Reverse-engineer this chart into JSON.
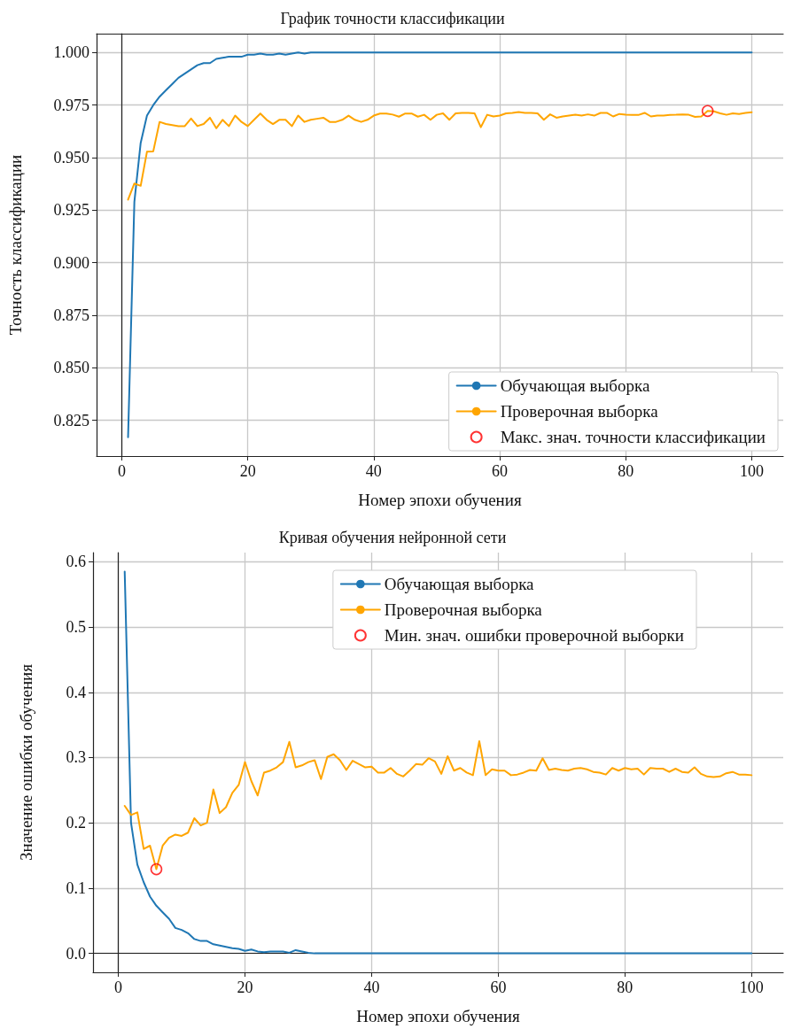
{
  "chart_data": [
    {
      "type": "line",
      "title": "График точности классификации",
      "xlabel": "Номер эпохи обучения",
      "ylabel": "Точность классификации",
      "x": [
        1,
        2,
        3,
        4,
        5,
        6,
        7,
        8,
        9,
        10,
        11,
        12,
        13,
        14,
        15,
        16,
        17,
        18,
        19,
        20,
        21,
        22,
        23,
        24,
        25,
        26,
        27,
        28,
        29,
        30,
        31,
        32,
        33,
        34,
        35,
        36,
        37,
        38,
        39,
        40,
        41,
        42,
        43,
        44,
        45,
        46,
        47,
        48,
        49,
        50,
        51,
        52,
        53,
        54,
        55,
        56,
        57,
        58,
        59,
        60,
        61,
        62,
        63,
        64,
        65,
        66,
        67,
        68,
        69,
        70,
        71,
        72,
        73,
        74,
        75,
        76,
        77,
        78,
        79,
        80,
        81,
        82,
        83,
        84,
        85,
        86,
        87,
        88,
        89,
        90,
        91,
        92,
        93,
        94,
        95,
        96,
        97,
        98,
        99,
        100
      ],
      "xlim": [
        -4,
        105
      ],
      "xticks": [
        0,
        20,
        40,
        60,
        80,
        100
      ],
      "ylim": [
        0.808,
        1.009
      ],
      "yticks": [
        {
          "value": 0.825,
          "label": "0.825"
        },
        {
          "value": 0.85,
          "label": "0.850"
        },
        {
          "value": 0.875,
          "label": "0.875"
        },
        {
          "value": 0.9,
          "label": "0.900"
        },
        {
          "value": 0.925,
          "label": "0.925"
        },
        {
          "value": 0.95,
          "label": "0.950"
        },
        {
          "value": 0.975,
          "label": "0.975"
        },
        {
          "value": 1,
          "label": "1.000"
        }
      ],
      "grid": true,
      "legend": "bottom right",
      "series": [
        {
          "name": "Обучающая выборка",
          "color": "#1f77b4",
          "values": [
            0.817,
            0.929,
            0.957,
            0.97,
            0.975,
            0.979,
            0.982,
            0.985,
            0.988,
            0.99,
            0.992,
            0.994,
            0.995,
            0.995,
            0.997,
            0.9975,
            0.998,
            0.998,
            0.998,
            0.999,
            0.999,
            0.9995,
            0.999,
            0.999,
            0.9995,
            0.999,
            0.9995,
            1,
            0.9995,
            1,
            1,
            1,
            1,
            1,
            1,
            1,
            1,
            1,
            1,
            1,
            1,
            1,
            1,
            1,
            1,
            1,
            1,
            1,
            1,
            1,
            1,
            1,
            1,
            1,
            1,
            1,
            1,
            1,
            1,
            1,
            1,
            1,
            1,
            1,
            1,
            1,
            1,
            1,
            1,
            1,
            1,
            1,
            1,
            1,
            1,
            1,
            1,
            1,
            1,
            1,
            1,
            1,
            1,
            1,
            1,
            1,
            1,
            1,
            1,
            1,
            1,
            1,
            1,
            1,
            1,
            1,
            1,
            1,
            1,
            1
          ]
        },
        {
          "name": "Проверочная выборка",
          "color": "#ffa500",
          "values": [
            0.93,
            0.9377,
            0.9366,
            0.9528,
            0.953,
            0.967,
            0.966,
            0.9655,
            0.965,
            0.965,
            0.9686,
            0.965,
            0.966,
            0.969,
            0.964,
            0.968,
            0.965,
            0.97,
            0.967,
            0.965,
            0.968,
            0.971,
            0.968,
            0.966,
            0.968,
            0.968,
            0.965,
            0.97,
            0.967,
            0.968,
            0.9685,
            0.969,
            0.967,
            0.967,
            0.968,
            0.97,
            0.968,
            0.967,
            0.968,
            0.97,
            0.971,
            0.971,
            0.9705,
            0.9695,
            0.971,
            0.971,
            0.9695,
            0.9704,
            0.968,
            0.9704,
            0.9711,
            0.968,
            0.9711,
            0.9713,
            0.9713,
            0.9711,
            0.9645,
            0.9704,
            0.9696,
            0.97,
            0.9711,
            0.9713,
            0.9717,
            0.9713,
            0.9713,
            0.9711,
            0.968,
            0.9706,
            0.969,
            0.9696,
            0.97,
            0.9704,
            0.97,
            0.9706,
            0.97,
            0.9713,
            0.9713,
            0.9696,
            0.9708,
            0.9704,
            0.9703,
            0.9703,
            0.9713,
            0.9696,
            0.97,
            0.97,
            0.9703,
            0.9704,
            0.9706,
            0.9704,
            0.9694,
            0.9696,
            0.9722,
            0.972,
            0.9711,
            0.9704,
            0.9711,
            0.9708,
            0.9713,
            0.9716
          ]
        },
        {
          "name": "Макс. знач. точности классификации",
          "type": "scatter",
          "marker": "circle",
          "color": "#ff0000",
          "x": [
            93
          ],
          "values": [
            0.9722
          ]
        }
      ]
    },
    {
      "type": "line",
      "title": "Кривая обучения нейронной сети",
      "xlabel": "Номер эпохи обучения",
      "ylabel": "Значение ошибки обучения",
      "x": [
        1,
        2,
        3,
        4,
        5,
        6,
        7,
        8,
        9,
        10,
        11,
        12,
        13,
        14,
        15,
        16,
        17,
        18,
        19,
        20,
        21,
        22,
        23,
        24,
        25,
        26,
        27,
        28,
        29,
        30,
        31,
        32,
        33,
        34,
        35,
        36,
        37,
        38,
        39,
        40,
        41,
        42,
        43,
        44,
        45,
        46,
        47,
        48,
        49,
        50,
        51,
        52,
        53,
        54,
        55,
        56,
        57,
        58,
        59,
        60,
        61,
        62,
        63,
        64,
        65,
        66,
        67,
        68,
        69,
        70,
        71,
        72,
        73,
        74,
        75,
        76,
        77,
        78,
        79,
        80,
        81,
        82,
        83,
        84,
        85,
        86,
        87,
        88,
        89,
        90,
        91,
        92,
        93,
        94,
        95,
        96,
        97,
        98,
        99,
        100
      ],
      "xlim": [
        -4,
        105
      ],
      "xticks": [
        0,
        20,
        40,
        60,
        80,
        100
      ],
      "ylim": [
        -0.029,
        0.614
      ],
      "yticks": [
        {
          "value": 0,
          "label": "0.0"
        },
        {
          "value": 0.1,
          "label": "0.1"
        },
        {
          "value": 0.2,
          "label": "0.2"
        },
        {
          "value": 0.3,
          "label": "0.3"
        },
        {
          "value": 0.4,
          "label": "0.4"
        },
        {
          "value": 0.5,
          "label": "0.5"
        },
        {
          "value": 0.6,
          "label": "0.6"
        }
      ],
      "grid": true,
      "legend": "top right",
      "series": [
        {
          "name": "Обучающая выборка",
          "color": "#1f77b4",
          "values": [
            0.585,
            0.2,
            0.136,
            0.109,
            0.087,
            0.073,
            0.063,
            0.053,
            0.039,
            0.036,
            0.031,
            0.022,
            0.019,
            0.019,
            0.014,
            0.012,
            0.01,
            0.008,
            0.007,
            0.004,
            0.006,
            0.003,
            0.002,
            0.003,
            0.003,
            0.003,
            0.001,
            0.005,
            0.003,
            0.001,
            0,
            0,
            0,
            0,
            0,
            0,
            0,
            0,
            0,
            0,
            0,
            0,
            0,
            0,
            0,
            0,
            0,
            0,
            0,
            0,
            0,
            0,
            0,
            0,
            0,
            0,
            0,
            0,
            0,
            0,
            0,
            0,
            0,
            0,
            0,
            0,
            0,
            0,
            0,
            0,
            0,
            0,
            0,
            0,
            0,
            0,
            0,
            0,
            0,
            0,
            0,
            0,
            0,
            0,
            0,
            0,
            0,
            0,
            0,
            0,
            0,
            0,
            0,
            0,
            0,
            0,
            0,
            0,
            0,
            0
          ]
        },
        {
          "name": "Проверочная выборка",
          "color": "#ffa500",
          "values": [
            0.226,
            0.212,
            0.216,
            0.16,
            0.165,
            0.129,
            0.165,
            0.177,
            0.182,
            0.18,
            0.185,
            0.207,
            0.196,
            0.2,
            0.251,
            0.215,
            0.224,
            0.246,
            0.258,
            0.293,
            0.264,
            0.242,
            0.277,
            0.28,
            0.285,
            0.293,
            0.324,
            0.285,
            0.288,
            0.293,
            0.296,
            0.267,
            0.301,
            0.305,
            0.296,
            0.281,
            0.295,
            0.29,
            0.285,
            0.286,
            0.277,
            0.277,
            0.284,
            0.275,
            0.271,
            0.28,
            0.29,
            0.289,
            0.299,
            0.294,
            0.275,
            0.302,
            0.28,
            0.284,
            0.277,
            0.273,
            0.325,
            0.273,
            0.282,
            0.28,
            0.28,
            0.273,
            0.274,
            0.277,
            0.281,
            0.28,
            0.299,
            0.281,
            0.283,
            0.281,
            0.28,
            0.283,
            0.284,
            0.282,
            0.278,
            0.277,
            0.274,
            0.284,
            0.28,
            0.284,
            0.282,
            0.283,
            0.274,
            0.284,
            0.283,
            0.283,
            0.278,
            0.283,
            0.278,
            0.277,
            0.285,
            0.275,
            0.271,
            0.27,
            0.271,
            0.276,
            0.278,
            0.274,
            0.274,
            0.273
          ]
        },
        {
          "name": "Мин. знач. ошибки проверочной выборки",
          "type": "scatter",
          "marker": "circle",
          "color": "#ff0000",
          "x": [
            6
          ],
          "values": [
            0.129
          ]
        }
      ]
    }
  ]
}
